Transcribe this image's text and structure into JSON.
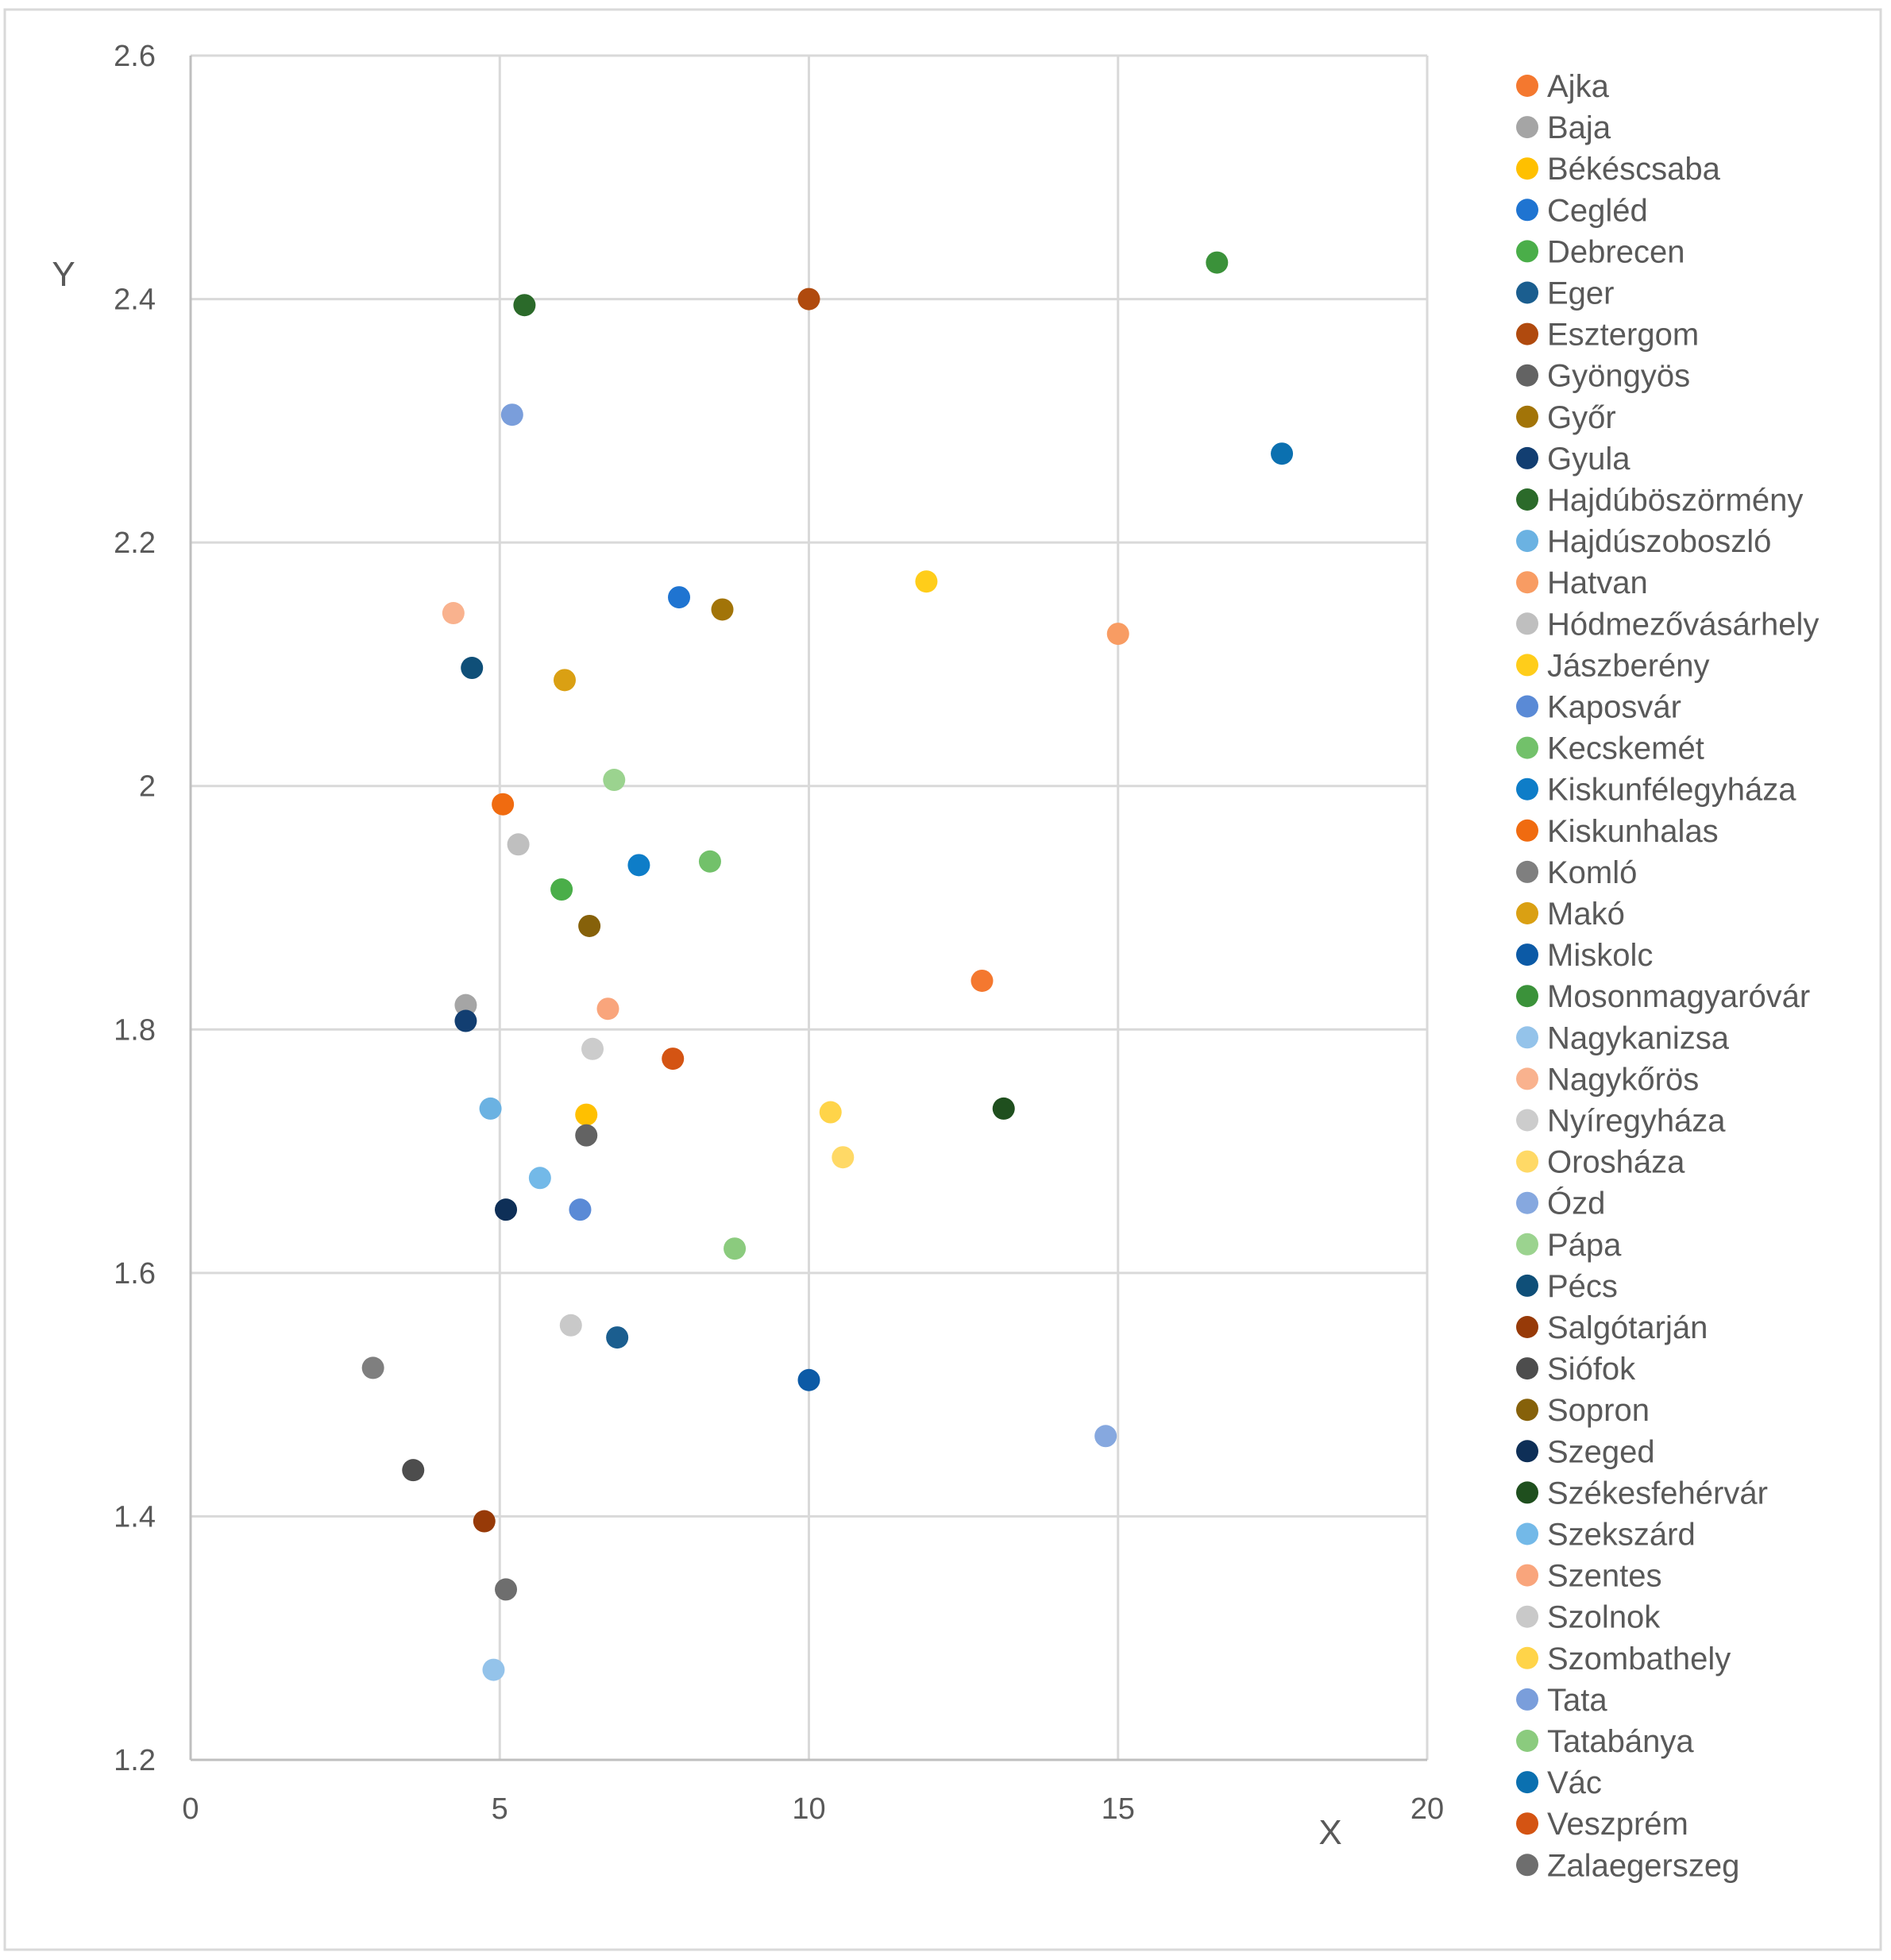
{
  "chart_data": {
    "type": "scatter",
    "title": "",
    "xlabel": "X",
    "ylabel": "Y",
    "xlim": [
      0,
      20
    ],
    "ylim": [
      1.2,
      2.6
    ],
    "x_ticks": [
      "0",
      "5",
      "10",
      "15",
      "20"
    ],
    "y_ticks": [
      "1.2",
      "1.4",
      "1.6",
      "1.8",
      "2",
      "2.2",
      "2.4",
      "2.6"
    ],
    "grid": true,
    "legend_position": "right",
    "series": [
      {
        "name": "Ajka",
        "color": "#F4782F",
        "x": 12.8,
        "y": 1.84
      },
      {
        "name": "Baja",
        "color": "#A5A5A5",
        "x": 4.45,
        "y": 1.82
      },
      {
        "name": "Békéscsaba",
        "color": "#FFC000",
        "x": 6.4,
        "y": 1.73
      },
      {
        "name": "Cegléd",
        "color": "#1F74D1",
        "x": 7.9,
        "y": 2.155
      },
      {
        "name": "Debrecen",
        "color": "#4AAE49",
        "x": 6.0,
        "y": 1.915
      },
      {
        "name": "Eger",
        "color": "#1B5E8F",
        "x": 6.9,
        "y": 1.547
      },
      {
        "name": "Esztergom",
        "color": "#B04A0E",
        "x": 10.0,
        "y": 2.4
      },
      {
        "name": "Gyöngyös",
        "color": "#636363",
        "x": 6.4,
        "y": 1.713
      },
      {
        "name": "Győr",
        "color": "#A27408",
        "x": 8.6,
        "y": 2.145
      },
      {
        "name": "Gyula",
        "color": "#123E71",
        "x": 4.45,
        "y": 1.807
      },
      {
        "name": "Hajdúböszörmény",
        "color": "#2B6A2A",
        "x": 5.4,
        "y": 2.395
      },
      {
        "name": "Hajdúszoboszló",
        "color": "#6BB2E2",
        "x": 4.85,
        "y": 1.735
      },
      {
        "name": "Hatvan",
        "color": "#F89C63",
        "x": 15.0,
        "y": 2.125
      },
      {
        "name": "Hódmezővásárhely",
        "color": "#BFBFBF",
        "x": 5.3,
        "y": 1.952
      },
      {
        "name": "Jászberény",
        "color": "#FFCD1A",
        "x": 11.9,
        "y": 2.168
      },
      {
        "name": "Kaposvár",
        "color": "#5A8AD6",
        "x": 6.3,
        "y": 1.652
      },
      {
        "name": "Kecskemét",
        "color": "#72C16A",
        "x": 8.4,
        "y": 1.938
      },
      {
        "name": "Kiskunfélegyháza",
        "color": "#0E7DC8",
        "x": 7.25,
        "y": 1.935
      },
      {
        "name": "Kiskunhalas",
        "color": "#F06B10",
        "x": 5.05,
        "y": 1.985
      },
      {
        "name": "Komló",
        "color": "#7F7F7F",
        "x": 2.95,
        "y": 1.522
      },
      {
        "name": "Makó",
        "color": "#DAA013",
        "x": 6.05,
        "y": 2.087
      },
      {
        "name": "Miskolc",
        "color": "#0C5AA6",
        "x": 10.0,
        "y": 1.512
      },
      {
        "name": "Mosonmagyaróvár",
        "color": "#3B923A",
        "x": 16.6,
        "y": 2.43
      },
      {
        "name": "Nagykanizsa",
        "color": "#94C3EA",
        "x": 4.9,
        "y": 1.274
      },
      {
        "name": "Nagykőrös",
        "color": "#F9B28E",
        "x": 4.25,
        "y": 2.142
      },
      {
        "name": "Nyíregyháza",
        "color": "#CCCCCC",
        "x": 6.5,
        "y": 1.784
      },
      {
        "name": "Orosháza",
        "color": "#FFD966",
        "x": 10.55,
        "y": 1.695
      },
      {
        "name": "Ózd",
        "color": "#86A8DF",
        "x": 14.8,
        "y": 1.466
      },
      {
        "name": "Pápa",
        "color": "#9BD38F",
        "x": 6.85,
        "y": 2.005
      },
      {
        "name": "Pécs",
        "color": "#0F4F78",
        "x": 4.55,
        "y": 2.097
      },
      {
        "name": "Salgótarján",
        "color": "#973A08",
        "x": 4.75,
        "y": 1.396
      },
      {
        "name": "Siófok",
        "color": "#4D4D4D",
        "x": 3.6,
        "y": 1.438
      },
      {
        "name": "Sopron",
        "color": "#86610A",
        "x": 6.45,
        "y": 1.885
      },
      {
        "name": "Szeged",
        "color": "#0E2F57",
        "x": 5.1,
        "y": 1.652
      },
      {
        "name": "Székesfehérvár",
        "color": "#1F4F1E",
        "x": 13.15,
        "y": 1.735
      },
      {
        "name": "Szekszárd",
        "color": "#73B9E8",
        "x": 5.65,
        "y": 1.678
      },
      {
        "name": "Szentes",
        "color": "#F9A57C",
        "x": 6.75,
        "y": 1.817
      },
      {
        "name": "Szolnok",
        "color": "#C9C9C9",
        "x": 6.15,
        "y": 1.557
      },
      {
        "name": "Szombathely",
        "color": "#FFD449",
        "x": 10.35,
        "y": 1.732
      },
      {
        "name": "Tata",
        "color": "#7A9EDB",
        "x": 5.2,
        "y": 2.305
      },
      {
        "name": "Tatabánya",
        "color": "#8BCB7E",
        "x": 8.8,
        "y": 1.62
      },
      {
        "name": "Vác",
        "color": "#0B70B0",
        "x": 17.65,
        "y": 2.273
      },
      {
        "name": "Veszprém",
        "color": "#D45413",
        "x": 7.8,
        "y": 1.776
      },
      {
        "name": "Zalaegerszeg",
        "color": "#6E6E6E",
        "x": 5.1,
        "y": 1.34
      }
    ]
  }
}
